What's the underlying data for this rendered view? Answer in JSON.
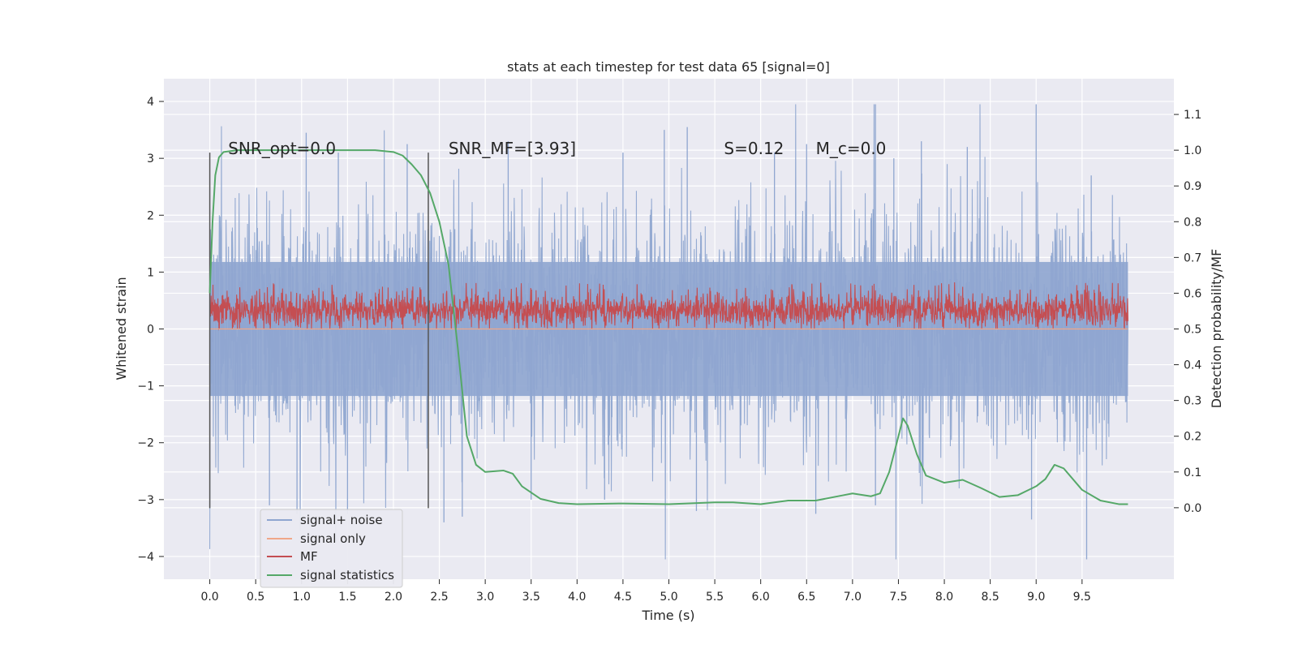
{
  "chart_data": {
    "type": "line",
    "title": "stats at each timestep for test data 65 [signal=0]",
    "xlabel": "Time (s)",
    "ylabel_left": "Whitened strain",
    "ylabel_right": "Detection probability/MF",
    "xlim": [
      -0.5,
      10.5
    ],
    "ylim_left": [
      -4.4,
      4.4
    ],
    "ylim_right": [
      -0.2,
      1.2
    ],
    "x_ticks": [
      "0.0",
      "0.5",
      "1.0",
      "1.5",
      "2.0",
      "2.5",
      "3.0",
      "3.5",
      "4.0",
      "4.5",
      "5.0",
      "5.5",
      "6.0",
      "6.5",
      "7.0",
      "7.5",
      "8.0",
      "8.5",
      "9.0",
      "9.5"
    ],
    "y_ticks_left": [
      "4",
      "3",
      "2",
      "1",
      "0",
      "−1",
      "−2",
      "−3",
      "−4"
    ],
    "y_ticks_right": [
      "1.1",
      "1.0",
      "0.9",
      "0.8",
      "0.7",
      "0.6",
      "0.5",
      "0.4",
      "0.3",
      "0.2",
      "0.1",
      "0.0"
    ],
    "grid": true,
    "legend_position": "lower-left",
    "annotations": [
      {
        "text": "SNR_opt=0.0",
        "x": 0.2,
        "y": 3.1
      },
      {
        "text": "SNR_MF=[3.93]",
        "x": 2.6,
        "y": 3.1
      },
      {
        "text": "S=0.12",
        "x": 5.6,
        "y": 3.1
      },
      {
        "text": "M_c=0.0",
        "x": 6.6,
        "y": 3.1
      }
    ],
    "vertical_markers": [
      {
        "x": 0.0,
        "y_range": [
          -3.15,
          3.1
        ]
      },
      {
        "x": 2.38,
        "y_range": [
          -3.15,
          3.1
        ]
      }
    ],
    "series": [
      {
        "name": "signal+ noise",
        "axis": "left",
        "color": "#8fa6d0",
        "style": "dense noise",
        "x_range": [
          0.0,
          10.0
        ],
        "typical_range": [
          -1.9,
          1.9
        ],
        "max": 3.95,
        "min": -4.05
      },
      {
        "name": "signal only",
        "axis": "left",
        "color": "#f0a789",
        "points": [
          [
            0.0,
            0.0
          ],
          [
            10.0,
            0.0
          ]
        ]
      },
      {
        "name": "MF",
        "axis": "left",
        "color": "#c44e52",
        "style": "dense noise",
        "x_range": [
          0.0,
          10.0
        ],
        "typical_range": [
          0.05,
          0.6
        ],
        "max": 1.0,
        "min": 0.0
      },
      {
        "name": "signal statistics",
        "axis": "right",
        "color": "#55a868",
        "points": [
          [
            0.0,
            0.6
          ],
          [
            0.03,
            0.8
          ],
          [
            0.06,
            0.93
          ],
          [
            0.1,
            0.98
          ],
          [
            0.15,
            0.995
          ],
          [
            0.3,
            1.0
          ],
          [
            1.0,
            1.0
          ],
          [
            1.8,
            1.0
          ],
          [
            2.0,
            0.995
          ],
          [
            2.1,
            0.985
          ],
          [
            2.2,
            0.96
          ],
          [
            2.3,
            0.93
          ],
          [
            2.4,
            0.88
          ],
          [
            2.5,
            0.8
          ],
          [
            2.6,
            0.68
          ],
          [
            2.7,
            0.45
          ],
          [
            2.8,
            0.2
          ],
          [
            2.9,
            0.12
          ],
          [
            3.0,
            0.1
          ],
          [
            3.1,
            0.102
          ],
          [
            3.2,
            0.104
          ],
          [
            3.3,
            0.095
          ],
          [
            3.4,
            0.06
          ],
          [
            3.6,
            0.025
          ],
          [
            3.8,
            0.013
          ],
          [
            4.0,
            0.01
          ],
          [
            4.5,
            0.012
          ],
          [
            5.0,
            0.01
          ],
          [
            5.5,
            0.015
          ],
          [
            5.7,
            0.015
          ],
          [
            6.0,
            0.01
          ],
          [
            6.3,
            0.02
          ],
          [
            6.6,
            0.02
          ],
          [
            6.9,
            0.035
          ],
          [
            7.0,
            0.04
          ],
          [
            7.2,
            0.032
          ],
          [
            7.3,
            0.04
          ],
          [
            7.4,
            0.1
          ],
          [
            7.5,
            0.2
          ],
          [
            7.55,
            0.25
          ],
          [
            7.6,
            0.23
          ],
          [
            7.7,
            0.15
          ],
          [
            7.8,
            0.09
          ],
          [
            8.0,
            0.07
          ],
          [
            8.2,
            0.078
          ],
          [
            8.4,
            0.055
          ],
          [
            8.6,
            0.03
          ],
          [
            8.8,
            0.035
          ],
          [
            9.0,
            0.06
          ],
          [
            9.1,
            0.08
          ],
          [
            9.2,
            0.12
          ],
          [
            9.3,
            0.11
          ],
          [
            9.5,
            0.05
          ],
          [
            9.7,
            0.02
          ],
          [
            9.9,
            0.01
          ],
          [
            10.0,
            0.01
          ]
        ]
      }
    ]
  }
}
